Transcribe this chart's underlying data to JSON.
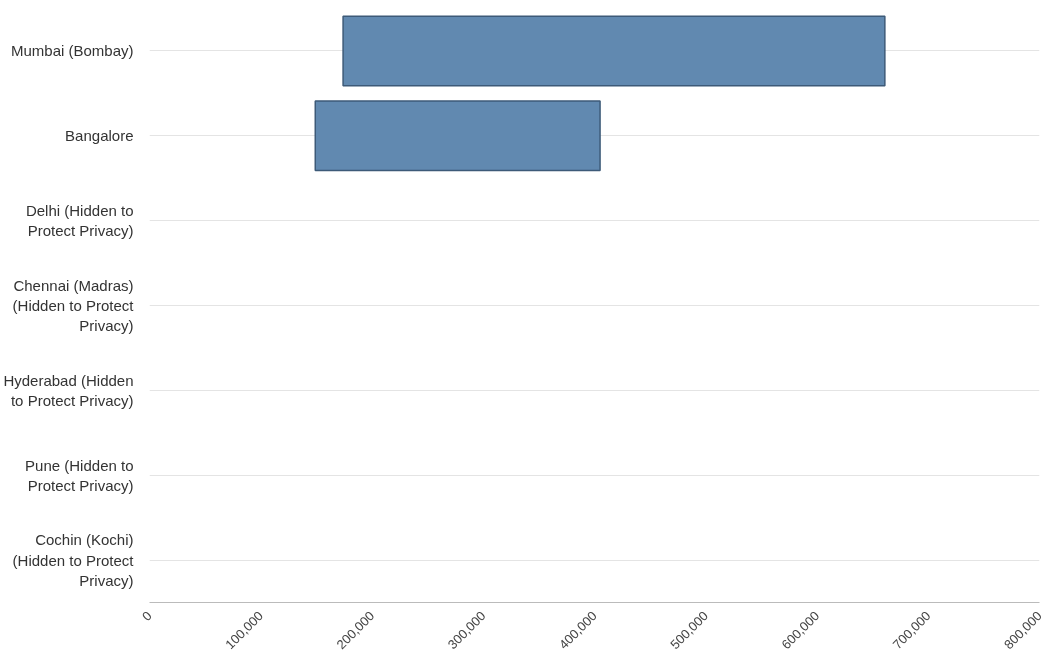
{
  "chart_data": {
    "type": "bar",
    "orientation": "horizontal",
    "categories": [
      "Mumbai (Bombay)",
      "Bangalore",
      "Delhi (Hidden to Protect Privacy)",
      "Chennai (Madras) (Hidden to Protect Privacy)",
      "Hyderabad (Hidden to Protect Privacy)",
      "Pune (Hidden to Protect Privacy)",
      "Cochin (Kochi) (Hidden to Protect Privacy)"
    ],
    "series": [
      {
        "color": "#6189b0",
        "values": [
          487000,
          256000,
          null,
          null,
          null,
          null,
          null
        ],
        "base": [
          174000,
          149000,
          null,
          null,
          null,
          null,
          null
        ]
      }
    ],
    "xlim": [
      0,
      800000
    ],
    "xticks": [
      0,
      {
        "value": 100000,
        "label": "100,000"
      },
      {
        "value": 200000,
        "label": "200,000"
      },
      {
        "value": 300000,
        "label": "300,000"
      },
      {
        "value": 400000,
        "label": "400,000"
      },
      {
        "value": 500000,
        "label": "500,000"
      },
      {
        "value": 600000,
        "label": "600,000"
      },
      {
        "value": 700000,
        "label": "700,000"
      },
      {
        "value": 800000,
        "label": "800,000"
      }
    ],
    "grid": "y"
  }
}
